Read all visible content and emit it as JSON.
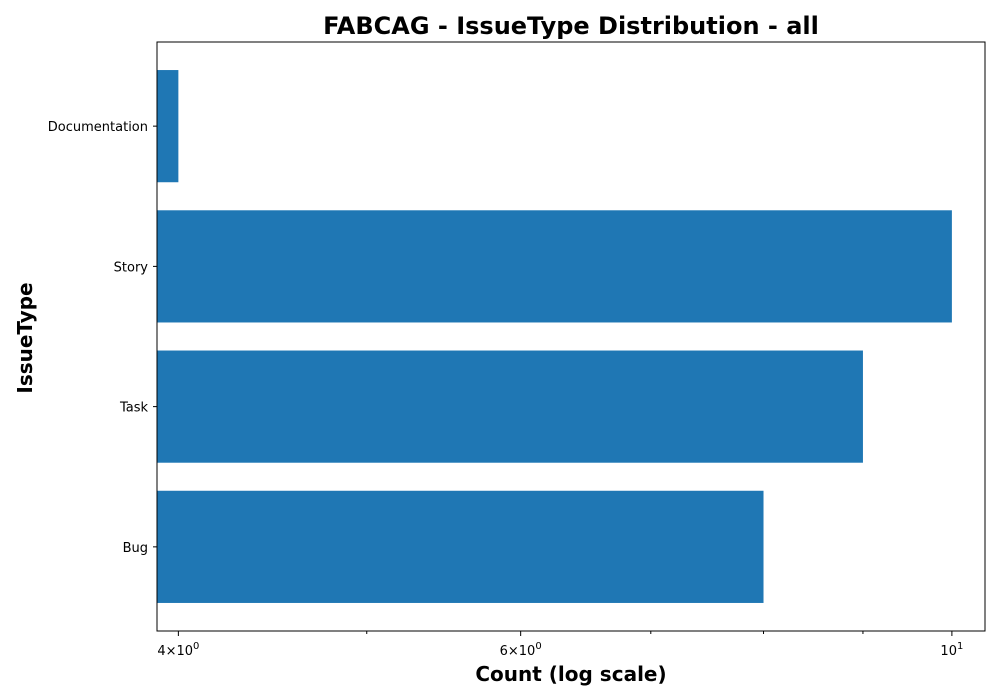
{
  "chart_data": {
    "type": "bar",
    "orientation": "horizontal",
    "title": "FABCAG - IssueType Distribution - all",
    "xlabel": "Count (log scale)",
    "ylabel": "IssueType",
    "x_scale": "log",
    "xlim": [
      3.9,
      10.4
    ],
    "categories": [
      "Documentation",
      "Story",
      "Task",
      "Bug"
    ],
    "values": [
      4,
      10,
      9,
      8
    ],
    "bar_color": "#1f77b4",
    "x_major_ticks": [
      {
        "value": 4,
        "mantissa": "4",
        "exponent": "0"
      },
      {
        "value": 6,
        "mantissa": "6",
        "exponent": "0"
      },
      {
        "value": 10,
        "mantissa": "",
        "exponent": "1"
      }
    ],
    "x_minor_ticks": [
      5,
      7,
      8,
      9
    ],
    "grid": false,
    "legend": "none"
  }
}
